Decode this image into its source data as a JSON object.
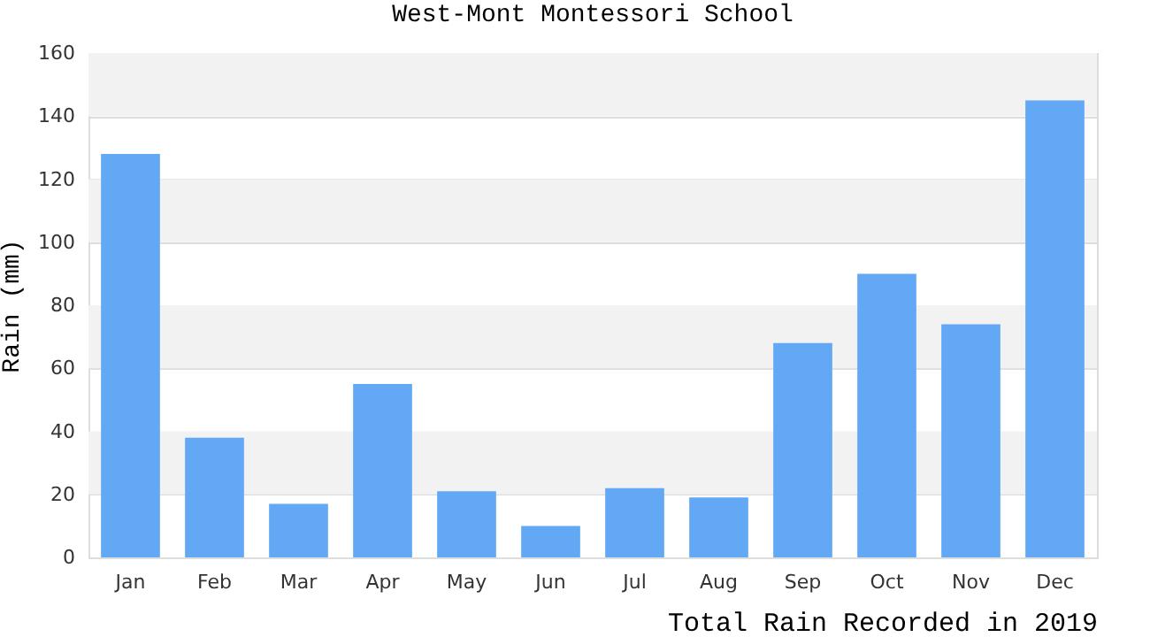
{
  "chart_data": {
    "type": "bar",
    "title": "West-Mont Montessori School",
    "xlabel": "Total Rain Recorded in 2019",
    "ylabel": "Rain (mm)",
    "categories": [
      "Jan",
      "Feb",
      "Mar",
      "Apr",
      "May",
      "Jun",
      "Jul",
      "Aug",
      "Sep",
      "Oct",
      "Nov",
      "Dec"
    ],
    "values": [
      128,
      38,
      17,
      55,
      21,
      10,
      22,
      19,
      68,
      90,
      74,
      145
    ],
    "color": "#62a8f5",
    "ylim": [
      0,
      160
    ],
    "yticks": [
      0,
      20,
      40,
      60,
      80,
      100,
      120,
      140,
      160
    ],
    "grid": "y",
    "bands": [
      {
        "axis": "y",
        "from": 20,
        "to": 40,
        "color": "#f2f2f2"
      },
      {
        "axis": "y",
        "from": 60,
        "to": 80,
        "color": "#f2f2f2"
      },
      {
        "axis": "y",
        "from": 100,
        "to": 120,
        "color": "#f2f2f2"
      },
      {
        "axis": "y",
        "from": 140,
        "to": 160,
        "color": "#f2f2f2"
      }
    ]
  }
}
